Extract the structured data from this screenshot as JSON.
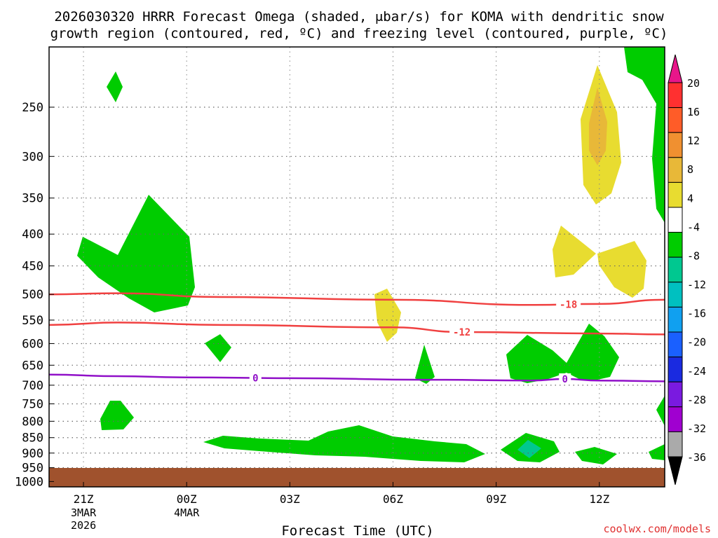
{
  "title": {
    "line1": "2026030320 HRRR Forecast Omega (shaded, μbar/s) for KOMA with dendritic snow",
    "line2": "growth region (contoured, red, ºC) and freezing level (contoured, purple, ºC)"
  },
  "credit": "coolwx.com/models",
  "chart_data": {
    "type": "time-height contour",
    "xlabel": "Forecast Time (UTC)",
    "y_scale": "log-pressure (hPa), inverted",
    "ylim": [
      1020,
      200
    ],
    "y_ticks": [
      250,
      300,
      350,
      400,
      450,
      500,
      550,
      600,
      650,
      700,
      750,
      800,
      850,
      900,
      950,
      1000
    ],
    "x_ticks": [
      {
        "h": 1,
        "label": "21Z",
        "sub1": "3MAR",
        "sub2": "2026"
      },
      {
        "h": 4,
        "label": "00Z",
        "sub1": "4MAR",
        "sub2": ""
      },
      {
        "h": 7,
        "label": "03Z",
        "sub1": "",
        "sub2": ""
      },
      {
        "h": 10,
        "label": "06Z",
        "sub1": "",
        "sub2": ""
      },
      {
        "h": 13,
        "label": "09Z",
        "sub1": "",
        "sub2": ""
      },
      {
        "h": 16,
        "label": "12Z",
        "sub1": "",
        "sub2": ""
      }
    ],
    "xlim": [
      0,
      17.9
    ],
    "grid": "dotted",
    "colorbar": {
      "units": "μbar/s",
      "labels": [
        "20",
        "16",
        "12",
        "8",
        "4",
        "-4",
        "-8",
        "-12",
        "-16",
        "-20",
        "-24",
        "-28",
        "-32",
        "-36"
      ],
      "colors": [
        "#e8168a",
        "#ff3030",
        "#ff5c28",
        "#f09030",
        "#e8b838",
        "#e8dc30",
        "#ffffff",
        "#00cc00",
        "#00c890",
        "#00c0c0",
        "#10a0f0",
        "#1a60ff",
        "#1a2ae0",
        "#7a1ae0",
        "#a000d0",
        "#aaaaaa",
        "#000000"
      ]
    },
    "contours": [
      {
        "label": "-18",
        "color": "#f04040",
        "x": [
          0,
          2,
          5,
          10,
          14,
          16,
          17.9
        ],
        "p": [
          500,
          498,
          505,
          510,
          520,
          518,
          510
        ]
      },
      {
        "label": "-12",
        "color": "#f04040",
        "x": [
          0,
          2,
          5,
          10,
          12,
          16,
          17.9
        ],
        "p": [
          560,
          555,
          560,
          565,
          575,
          578,
          580
        ]
      },
      {
        "label": "0",
        "color": "#9010c8",
        "x": [
          0,
          2,
          4,
          7,
          11,
          14,
          15,
          16,
          17.9
        ],
        "p": [
          673,
          677,
          680,
          682,
          686,
          688,
          684,
          688,
          690
        ]
      }
    ],
    "contour_label_positions": [
      {
        "label": "-18",
        "x": 15.1
      },
      {
        "label": "-12",
        "x": 12.0
      },
      {
        "label": "0",
        "x": 6.0
      },
      {
        "label": "0",
        "x": 15.0
      }
    ]
  }
}
